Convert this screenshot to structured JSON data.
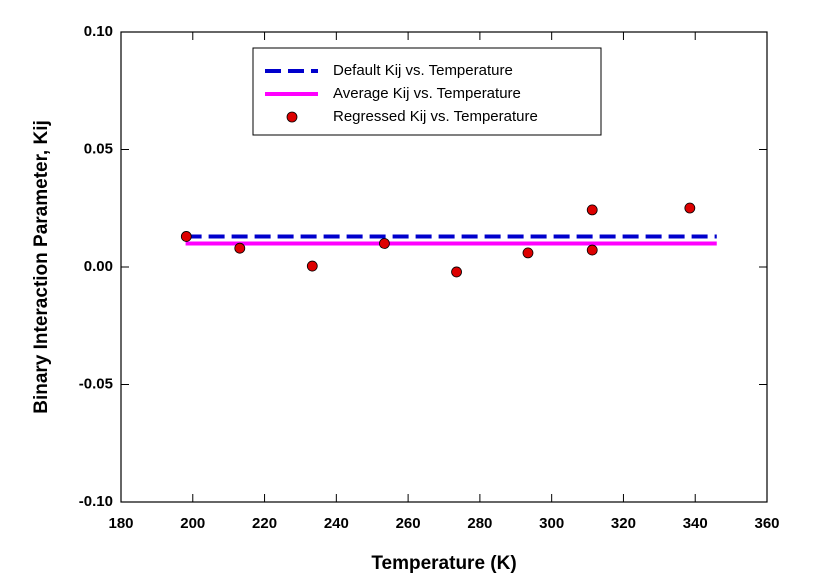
{
  "chart_data": {
    "type": "scatter-line",
    "xlabel": "Temperature (K)",
    "ylabel": "Binary Interaction Parameter, Kij",
    "xlim": [
      180,
      360
    ],
    "xticks": [
      180,
      200,
      220,
      240,
      260,
      280,
      300,
      320,
      340,
      360
    ],
    "ylim": [
      -0.1,
      0.1
    ],
    "yticks": [
      {
        "value": -0.1,
        "label": "-0.10"
      },
      {
        "value": -0.05,
        "label": "-0.05"
      },
      {
        "value": 0,
        "label": "0.00"
      },
      {
        "value": 0.05,
        "label": "0.05"
      },
      {
        "value": 0.1,
        "label": "0.10"
      }
    ],
    "series": [
      {
        "name": "Default Kij vs. Temperature",
        "kind": "line",
        "style": "dashed",
        "color": "#0000cc",
        "x": [
          198,
          346
        ],
        "values": [
          0.013,
          0.013
        ]
      },
      {
        "name": "Average Kij vs. Temperature",
        "kind": "line",
        "style": "solid",
        "color": "#ff00ff",
        "x": [
          198,
          346
        ],
        "values": [
          0.01,
          0.01
        ]
      },
      {
        "name": "Regressed Kij vs. Temperature",
        "kind": "points",
        "color": "#dd0000",
        "x": [
          198.2,
          213.1,
          233.3,
          253.4,
          273.5,
          293.4,
          311.3,
          311.3,
          338.5
        ],
        "values": [
          0.013,
          0.008,
          0.0004,
          0.01,
          -0.0021,
          0.006,
          0.0243,
          0.0072,
          0.0251
        ]
      }
    ]
  }
}
